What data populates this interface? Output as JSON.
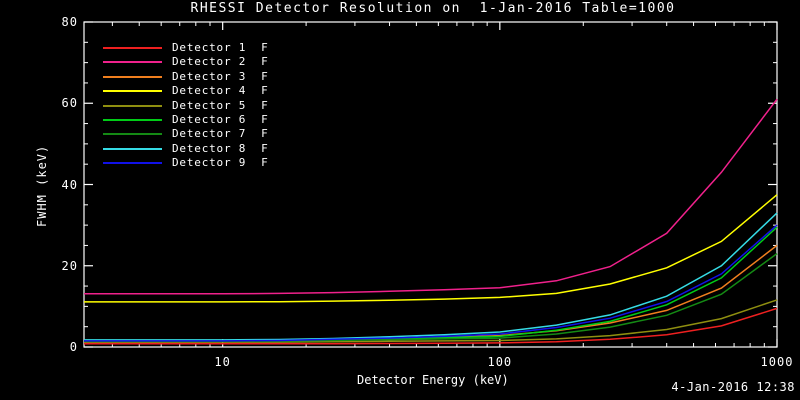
{
  "title": "RHESSI Detector Resolution on  1-Jan-2016 Table=1000",
  "timestamp": "4-Jan-2016 12:38",
  "colors": {
    "background": "#000000",
    "foreground": "#ffffff"
  },
  "chart_data": {
    "type": "line",
    "title": "RHESSI Detector Resolution on  1-Jan-2016 Table=1000",
    "xlabel": "Detector Energy (keV)",
    "ylabel": "FWHM (keV)",
    "x_scale": "log",
    "xlim": [
      3.16,
      1000
    ],
    "ylim": [
      0,
      80
    ],
    "x_major_ticks": [
      10,
      100,
      1000
    ],
    "x_major_labels": [
      "10",
      "100",
      "1000"
    ],
    "y_major_ticks": [
      0,
      20,
      40,
      60,
      80
    ],
    "y_minor_step": 5,
    "grid": false,
    "legend_position": "top-left",
    "x": [
      3.16,
      5,
      10,
      16,
      25,
      40,
      63,
      100,
      160,
      250,
      400,
      630,
      1000
    ],
    "series": [
      {
        "name": "Detector 1  F",
        "color": "#ee2020",
        "values": [
          0.8,
          0.8,
          0.8,
          0.8,
          0.8,
          0.85,
          0.9,
          1.0,
          1.3,
          1.9,
          3.0,
          5.2,
          9.5
        ]
      },
      {
        "name": "Detector 2  F",
        "color": "#f0218c",
        "values": [
          13.1,
          13.1,
          13.1,
          13.2,
          13.4,
          13.7,
          14.1,
          14.6,
          16.3,
          19.8,
          28,
          43,
          61
        ]
      },
      {
        "name": "Detector 3  F",
        "color": "#f07f1e",
        "values": [
          1.5,
          1.5,
          1.5,
          1.6,
          1.8,
          2.1,
          2.4,
          2.8,
          4.0,
          5.9,
          9.0,
          14.5,
          25
        ]
      },
      {
        "name": "Detector 4  F",
        "color": "#ffff00",
        "values": [
          11.1,
          11.1,
          11.1,
          11.15,
          11.3,
          11.5,
          11.8,
          12.2,
          13.2,
          15.5,
          19.5,
          26,
          37.5
        ]
      },
      {
        "name": "Detector 5  F",
        "color": "#8f8f10",
        "values": [
          1.2,
          1.2,
          1.2,
          1.2,
          1.3,
          1.4,
          1.5,
          1.6,
          2.0,
          2.8,
          4.3,
          7.0,
          11.6
        ]
      },
      {
        "name": "Detector 6  F",
        "color": "#00cc17",
        "values": [
          1.5,
          1.5,
          1.5,
          1.6,
          1.7,
          2.0,
          2.3,
          2.6,
          4.1,
          6.3,
          10.4,
          17,
          29.5
        ]
      },
      {
        "name": "Detector 7  F",
        "color": "#148a14",
        "values": [
          1.4,
          1.4,
          1.4,
          1.45,
          1.6,
          1.8,
          2.0,
          2.2,
          3.2,
          4.9,
          7.8,
          13,
          23
        ]
      },
      {
        "name": "Detector 8  F",
        "color": "#35dbe5",
        "values": [
          1.75,
          1.75,
          1.75,
          1.85,
          2.1,
          2.5,
          3.0,
          3.7,
          5.4,
          7.9,
          12.5,
          20,
          33
        ]
      },
      {
        "name": "Detector 9  F",
        "color": "#1111e8",
        "values": [
          1.5,
          1.5,
          1.5,
          1.6,
          1.9,
          2.2,
          2.6,
          3.2,
          4.8,
          7.1,
          11.2,
          18,
          30
        ]
      }
    ]
  }
}
